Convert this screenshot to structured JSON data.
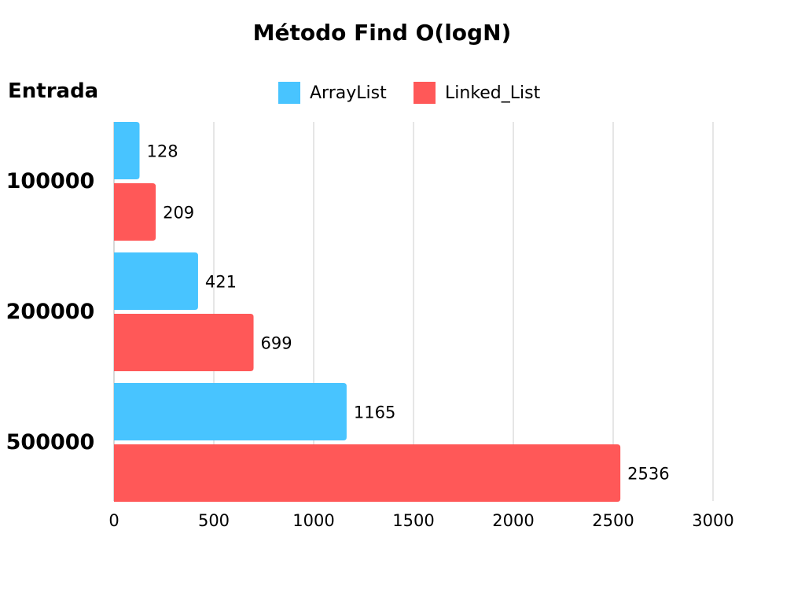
{
  "chart_data": {
    "type": "bar",
    "orientation": "horizontal",
    "title": "Método Find O(logN)",
    "ylabel": "Entrada",
    "xlabel": "",
    "categories": [
      "100000",
      "200000",
      "500000"
    ],
    "series": [
      {
        "name": "ArrayList",
        "color": "#48C4FF",
        "values": [
          128,
          421,
          1165
        ]
      },
      {
        "name": "Linked_List",
        "color": "#FF5858",
        "values": [
          209,
          699,
          2536
        ]
      }
    ],
    "xlim": [
      0,
      3000
    ],
    "x_ticks": [
      0,
      500,
      1000,
      1500,
      2000,
      2500,
      3000
    ],
    "grid": true,
    "legend_position": "top-center",
    "data_labels": true
  }
}
